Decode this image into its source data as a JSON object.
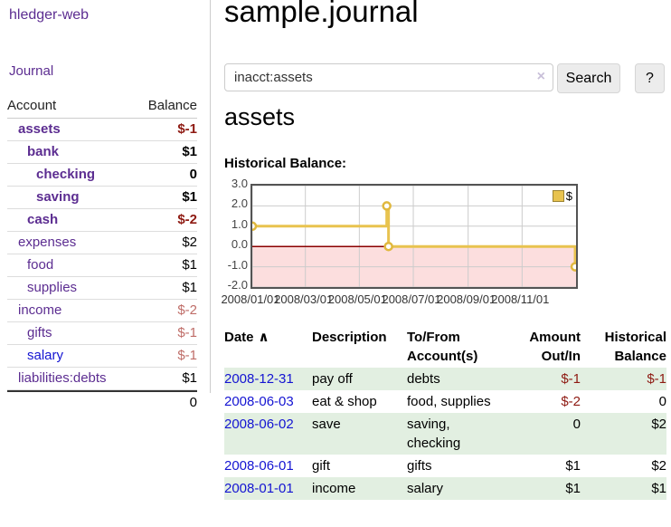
{
  "colors": {
    "link_purple": "#5c2d91",
    "link_blue": "#1414d2",
    "negative_strong": "#8e1a12",
    "negative_muted": "#bf6d68",
    "stripe_green": "#e2efe1",
    "chart_line_gold": "#e8c34f",
    "chart_marker_stroke": "#e0b83e",
    "chart_negative_fill": "#fcdede",
    "chart_zero_line": "#8b0000",
    "chart_grid": "#cccccc",
    "legend_swatch_fill": "#e8c34f",
    "legend_swatch_border": "#9c8433",
    "clear_icon_color": "#c9c0d9"
  },
  "sidebar": {
    "brand": "hledger-web",
    "journal_label": "Journal",
    "accounts_table": {
      "headers": [
        "Account",
        "Balance"
      ],
      "rows": [
        {
          "name": "assets",
          "depth": 0,
          "balance": "$-1",
          "bold": true,
          "negative": true
        },
        {
          "name": "bank",
          "depth": 1,
          "balance": "$1",
          "bold": true,
          "negative": false
        },
        {
          "name": "checking",
          "depth": 2,
          "balance": "0",
          "bold": true,
          "negative": false
        },
        {
          "name": "saving",
          "depth": 2,
          "balance": "$1",
          "bold": true,
          "negative": false
        },
        {
          "name": "cash",
          "depth": 1,
          "balance": "$-2",
          "bold": true,
          "negative": true
        },
        {
          "name": "expenses",
          "depth": 0,
          "balance": "$2",
          "bold": false,
          "negative": false
        },
        {
          "name": "food",
          "depth": 1,
          "balance": "$1",
          "bold": false,
          "negative": false
        },
        {
          "name": "supplies",
          "depth": 1,
          "balance": "$1",
          "bold": false,
          "negative": false
        },
        {
          "name": "income",
          "depth": 0,
          "balance": "$-2",
          "bold": false,
          "negative": true
        },
        {
          "name": "gifts",
          "depth": 1,
          "balance": "$-1",
          "bold": false,
          "negative": true
        },
        {
          "name": "salary",
          "depth": 1,
          "balance": "$-1",
          "bold": false,
          "negative": true,
          "link_color": "blue"
        },
        {
          "name": "liabilities:debts",
          "depth": 0,
          "balance": "$1",
          "bold": false,
          "negative": false
        }
      ],
      "total": "0"
    }
  },
  "main": {
    "title": "sample.journal",
    "search": {
      "value": "inacct:assets",
      "clear_icon": "×",
      "button_label": "Search",
      "help_label": "?"
    },
    "account_heading": "assets",
    "chart_heading": "Historical Balance:"
  },
  "chart_data": {
    "type": "line",
    "title": "Historical Balance:",
    "step": true,
    "series": [
      {
        "name": "$",
        "points": [
          {
            "date": "2008-01-01",
            "value": 1
          },
          {
            "date": "2008-06-01",
            "value": 2
          },
          {
            "date": "2008-06-03",
            "value": 0
          },
          {
            "date": "2008-12-31",
            "value": -1
          }
        ]
      }
    ],
    "x_range": [
      "2008-01-01",
      "2009-01-01"
    ],
    "y_range": [
      -2,
      3
    ],
    "y_ticks": [
      "3.0",
      "2.0",
      "1.0",
      "0.0",
      "-1.0",
      "-2.0"
    ],
    "x_ticks": [
      {
        "label": "2008/01/01",
        "date": "2008-01-01"
      },
      {
        "label": "2008/03/01",
        "date": "2008-03-01"
      },
      {
        "label": "2008/05/01",
        "date": "2008-05-01"
      },
      {
        "label": "2008/07/01",
        "date": "2008-07-01"
      },
      {
        "label": "2008/09/01",
        "date": "2008-09-01"
      },
      {
        "label": "2008/11/01",
        "date": "2008-11-01"
      }
    ],
    "grid": true,
    "legend_position": "top-right"
  },
  "transactions": {
    "headers": [
      "Date",
      "Description",
      "To/From Account(s)",
      "Amount Out/In",
      "Historical Balance"
    ],
    "sort_icon": "∧",
    "rows": [
      {
        "date": "2008-12-31",
        "description": "pay off",
        "accounts": "debts",
        "amount": "$-1",
        "amount_neg": true,
        "balance": "$-1",
        "balance_neg": true
      },
      {
        "date": "2008-06-03",
        "description": "eat & shop",
        "accounts": "food, supplies",
        "amount": "$-2",
        "amount_neg": true,
        "balance": "0",
        "balance_neg": false
      },
      {
        "date": "2008-06-02",
        "description": "save",
        "accounts": "saving, checking",
        "amount": "0",
        "amount_neg": false,
        "balance": "$2",
        "balance_neg": false
      },
      {
        "date": "2008-06-01",
        "description": "gift",
        "accounts": "gifts",
        "amount": "$1",
        "amount_neg": false,
        "balance": "$2",
        "balance_neg": false
      },
      {
        "date": "2008-01-01",
        "description": "income",
        "accounts": "salary",
        "amount": "$1",
        "amount_neg": false,
        "balance": "$1",
        "balance_neg": false
      }
    ]
  }
}
